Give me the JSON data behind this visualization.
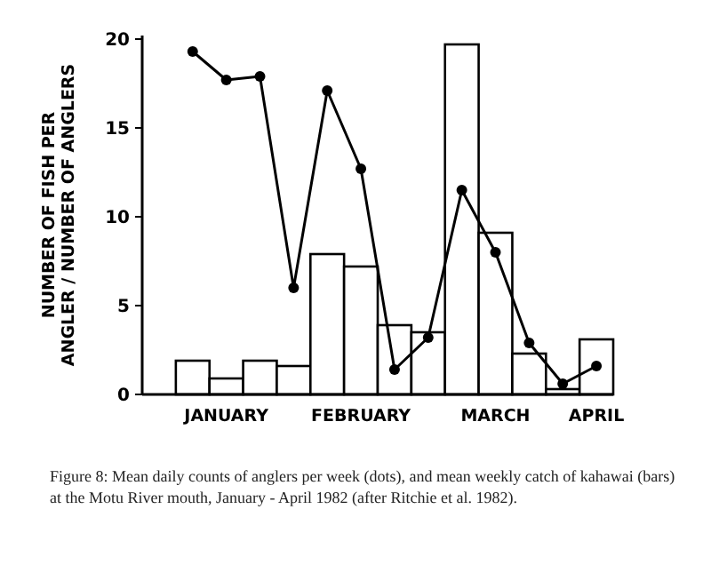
{
  "chart_data": {
    "type": "bar",
    "ylabel": "NUMBER OF FISH PER\nANGLER / NUMBER OF ANGLERS",
    "annotations": [
      "Figure 8: Mean daily counts of anglers per week (dots), and mean weekly catch of kahawai (bars) at the Motu River mouth, January - April 1982 (after Ritchie et al. 1982)."
    ],
    "categories": [
      null,
      "JANUARY",
      null,
      null,
      null,
      "FEBRUARY",
      null,
      null,
      null,
      "MARCH",
      null,
      null,
      "APRIL"
    ],
    "ylim": [
      0,
      20.2
    ],
    "yticks": [
      0,
      5,
      10,
      15,
      20
    ],
    "series": [
      {
        "color": "#ffffff",
        "values": [
          1.9,
          0.9,
          1.9,
          1.6,
          7.9,
          7.2,
          3.9,
          3.5,
          19.7,
          9.1,
          2.3,
          0.3,
          3.1
        ]
      },
      {
        "type": "line",
        "color": "#000000",
        "marker": "circle",
        "line_style": "solid",
        "values": [
          19.3,
          17.7,
          17.9,
          6.0,
          17.1,
          12.7,
          1.4,
          3.2,
          11.5,
          8.0,
          2.9,
          0.6,
          1.6
        ]
      }
    ]
  }
}
